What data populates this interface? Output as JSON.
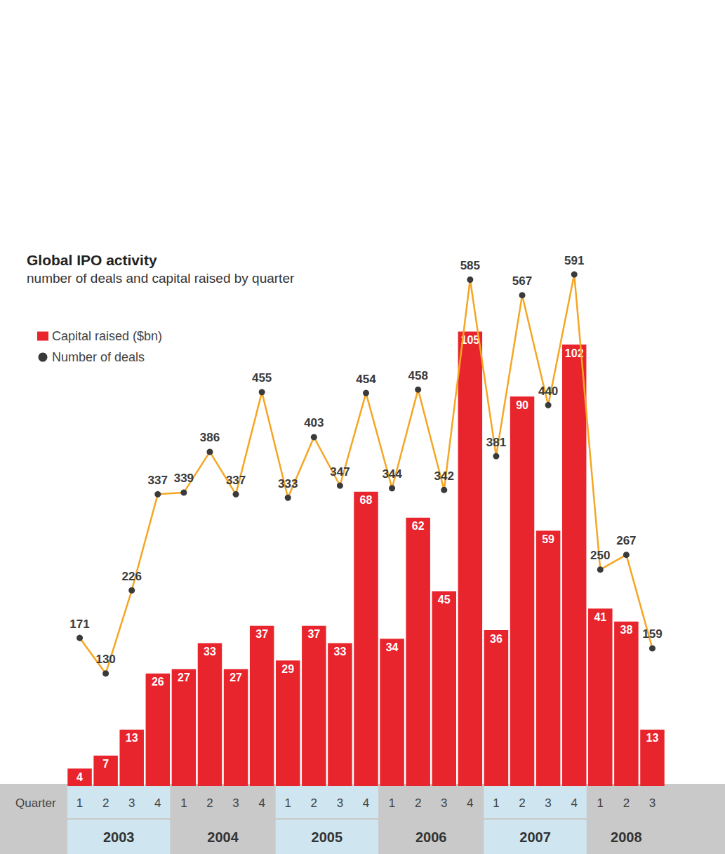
{
  "chart_data": {
    "type": "bar",
    "title": "Global IPO activity",
    "subtitle": "number of deals and capital raised by quarter",
    "x_label": "Quarter",
    "categories": [
      "1",
      "2",
      "3",
      "4",
      "1",
      "2",
      "3",
      "4",
      "1",
      "2",
      "3",
      "4",
      "1",
      "2",
      "3",
      "4",
      "1",
      "2",
      "3",
      "4",
      "1",
      "2",
      "3"
    ],
    "category_groups": [
      {
        "label": "2003",
        "count": 4
      },
      {
        "label": "2004",
        "count": 4
      },
      {
        "label": "2005",
        "count": 4
      },
      {
        "label": "2006",
        "count": 4
      },
      {
        "label": "2007",
        "count": 4
      },
      {
        "label": "2008",
        "count": 3
      }
    ],
    "series": [
      {
        "name": "Capital raised ($bn)",
        "type": "bar",
        "color": "#e8242c",
        "values": [
          4,
          7,
          13,
          26,
          27,
          33,
          27,
          37,
          29,
          37,
          33,
          68,
          34,
          62,
          45,
          105,
          36,
          90,
          59,
          102,
          41,
          38,
          13
        ]
      },
      {
        "name": "Number of deals",
        "type": "line",
        "color": "#f5a623",
        "marker": "circle",
        "axis": "y2",
        "values": [
          171,
          130,
          226,
          337,
          339,
          386,
          337,
          455,
          333,
          403,
          347,
          454,
          344,
          458,
          342,
          585,
          381,
          567,
          440,
          591,
          250,
          267,
          159
        ]
      }
    ],
    "ylim": [
      0,
      120
    ],
    "yticks": [
      0,
      40,
      80,
      120
    ],
    "y2lim": [
      0,
      600
    ],
    "y2ticks": [
      0,
      200,
      400,
      600
    ],
    "grid": false,
    "legend": "top-left",
    "data_labels": true,
    "tick_labels": "x"
  }
}
